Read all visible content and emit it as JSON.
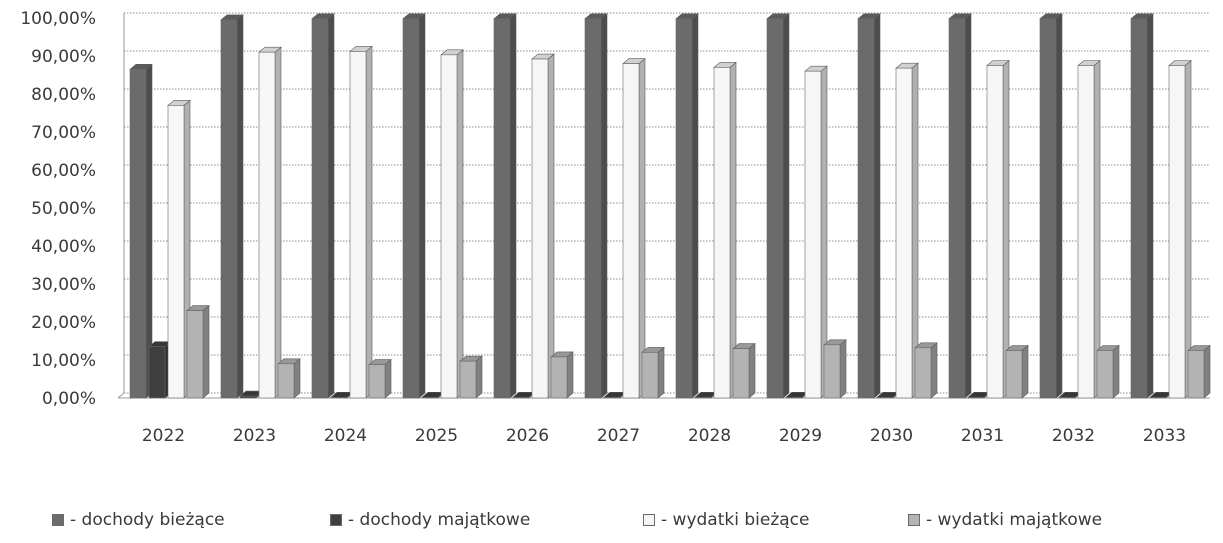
{
  "chart_data": {
    "type": "bar",
    "categories": [
      "2022",
      "2023",
      "2024",
      "2025",
      "2026",
      "2027",
      "2028",
      "2029",
      "2030",
      "2031",
      "2032",
      "2033"
    ],
    "series": [
      {
        "name": "- dochody bieżące",
        "color": "#6b6b6b",
        "values": [
          86.5,
          99.5,
          99.8,
          99.8,
          99.8,
          99.8,
          99.8,
          99.8,
          99.8,
          99.8,
          99.8,
          99.8
        ]
      },
      {
        "name": "- dochody majątkowe",
        "color": "#3f3f3f",
        "values": [
          13.5,
          0.5,
          0.2,
          0.2,
          0.2,
          0.2,
          0.2,
          0.2,
          0.2,
          0.2,
          0.2,
          0.2
        ]
      },
      {
        "name": "- wydatki bieżące",
        "color": "#f6f6f6",
        "values": [
          77.0,
          91.0,
          91.2,
          90.3,
          89.2,
          88.0,
          87.0,
          86.0,
          86.8,
          87.5,
          87.5,
          87.5
        ]
      },
      {
        "name": "- wydatki majątkowe",
        "color": "#b3b3b3",
        "values": [
          23.0,
          9.0,
          8.8,
          9.7,
          10.8,
          12.0,
          13.0,
          14.0,
          13.2,
          12.5,
          12.5,
          12.5
        ]
      }
    ],
    "yticks": [
      "0,00%",
      "10,00%",
      "20,00%",
      "30,00%",
      "40,00%",
      "50,00%",
      "60,00%",
      "70,00%",
      "80,00%",
      "90,00%",
      "100,00%"
    ],
    "ylim": [
      0,
      100
    ],
    "grid": true,
    "legend_position": "bottom",
    "title": "",
    "xlabel": "",
    "ylabel": ""
  }
}
